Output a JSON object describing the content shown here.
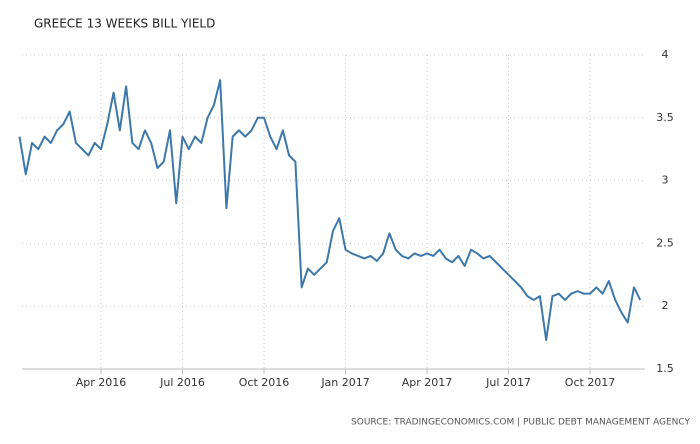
{
  "chart_data": {
    "type": "line",
    "title": "GREECE 13 WEEKS BILL YIELD",
    "source": "SOURCE: TRADINGECONOMICS.COM | PUBLIC DEBT MANAGEMENT AGENCY",
    "categories": [
      null,
      null,
      null,
      null,
      null,
      null,
      null,
      null,
      null,
      null,
      null,
      null,
      null,
      "Apr 2016",
      null,
      null,
      null,
      null,
      null,
      null,
      null,
      null,
      null,
      null,
      null,
      null,
      "Jul 2016",
      null,
      null,
      null,
      null,
      null,
      null,
      null,
      null,
      null,
      null,
      null,
      null,
      "Oct 2016",
      null,
      null,
      null,
      null,
      null,
      null,
      null,
      null,
      null,
      null,
      null,
      null,
      "Jan 2017",
      null,
      null,
      null,
      null,
      null,
      null,
      null,
      null,
      null,
      null,
      null,
      null,
      "Apr 2017",
      null,
      null,
      null,
      null,
      null,
      null,
      null,
      null,
      null,
      null,
      null,
      null,
      "Jul 2017",
      null,
      null,
      null,
      null,
      null,
      null,
      null,
      null,
      null,
      null,
      null,
      null,
      "Oct 2017",
      null,
      null,
      null,
      null,
      null,
      null,
      null,
      null
    ],
    "series": [
      {
        "name": "Greece 13 Weeks Bill Yield",
        "color": "#3d78aa",
        "values": [
          3.35,
          3.05,
          3.3,
          3.25,
          3.35,
          3.3,
          3.4,
          3.45,
          3.55,
          3.3,
          3.25,
          3.2,
          3.3,
          3.25,
          3.45,
          3.7,
          3.4,
          3.75,
          3.3,
          3.25,
          3.4,
          3.3,
          3.1,
          3.15,
          3.4,
          2.82,
          3.35,
          3.25,
          3.35,
          3.3,
          3.5,
          3.6,
          3.8,
          2.78,
          3.35,
          3.4,
          3.35,
          3.4,
          3.5,
          3.5,
          3.35,
          3.25,
          3.4,
          3.2,
          3.15,
          2.15,
          2.3,
          2.25,
          2.3,
          2.35,
          2.6,
          2.7,
          2.45,
          2.42,
          2.4,
          2.38,
          2.4,
          2.36,
          2.42,
          2.58,
          2.45,
          2.4,
          2.38,
          2.42,
          2.4,
          2.42,
          2.4,
          2.45,
          2.38,
          2.35,
          2.4,
          2.32,
          2.45,
          2.42,
          2.38,
          2.4,
          2.35,
          2.3,
          2.25,
          2.2,
          2.15,
          2.08,
          2.05,
          2.08,
          1.73,
          2.08,
          2.1,
          2.05,
          2.1,
          2.12,
          2.1,
          2.1,
          2.15,
          2.1,
          2.2,
          2.05,
          1.95,
          1.87,
          2.15,
          2.05
        ]
      }
    ],
    "ylim": [
      1.5,
      4
    ],
    "yticks": [
      1.5,
      2,
      2.5,
      3,
      3.5,
      4
    ],
    "grid": true
  }
}
